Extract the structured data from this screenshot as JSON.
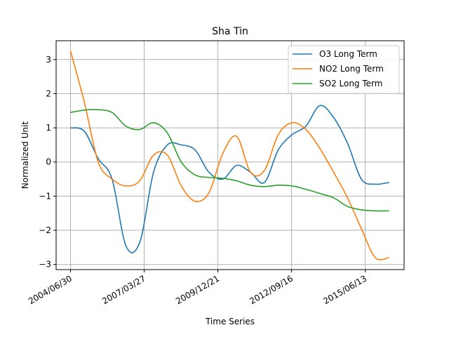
{
  "chart_data": {
    "type": "line",
    "title": "Sha Tin",
    "xlabel": "Time Series",
    "ylabel": "Normalized Unit",
    "xlim": [
      "2004/06/30",
      "2016/05/10"
    ],
    "ylim": [
      -3.15,
      3.55
    ],
    "grid": true,
    "legend_position": "top-right",
    "x_tick_labels": [
      "2004/06/30",
      "2007/03/27",
      "2009/12/21",
      "2012/09/16",
      "2015/06/13"
    ],
    "y_ticks": [
      -3,
      -2,
      -1,
      0,
      1,
      2,
      3
    ],
    "x": [
      "2004/06/30",
      "2005/01/04",
      "2005/07/11",
      "2006/01/15",
      "2006/07/22",
      "2007/01/26",
      "2007/08/01",
      "2008/02/05",
      "2008/08/11",
      "2009/02/15",
      "2009/08/22",
      "2010/02/26",
      "2010/09/02",
      "2011/03/09",
      "2011/09/13",
      "2012/03/19",
      "2012/09/23",
      "2013/03/30",
      "2013/10/04",
      "2014/04/10",
      "2014/10/15",
      "2015/04/21",
      "2015/10/26",
      "2016/05/01"
    ],
    "series": [
      {
        "name": "O3 Long Term",
        "color": "#1f77b4",
        "values": [
          1.0,
          0.9,
          0.1,
          -0.5,
          -2.45,
          -2.35,
          -0.3,
          0.5,
          0.5,
          0.35,
          -0.3,
          -0.5,
          -0.1,
          -0.3,
          -0.6,
          0.35,
          0.8,
          1.05,
          1.65,
          1.3,
          0.55,
          -0.5,
          -0.65,
          -0.6
        ]
      },
      {
        "name": "NO2 Long Term",
        "color": "#ff7f0e",
        "values": [
          3.25,
          1.75,
          0.0,
          -0.5,
          -0.7,
          -0.55,
          0.2,
          0.2,
          -0.7,
          -1.15,
          -0.9,
          0.25,
          0.75,
          -0.3,
          -0.25,
          0.8,
          1.15,
          0.95,
          0.4,
          -0.3,
          -1.05,
          -1.95,
          -2.8,
          -2.8
        ]
      },
      {
        "name": "SO2 Long Term",
        "color": "#2ca02c",
        "values": [
          1.45,
          1.52,
          1.53,
          1.45,
          1.05,
          0.95,
          1.15,
          0.85,
          0.0,
          -0.38,
          -0.45,
          -0.48,
          -0.55,
          -0.68,
          -0.72,
          -0.68,
          -0.7,
          -0.8,
          -0.92,
          -1.05,
          -1.3,
          -1.4,
          -1.43,
          -1.43
        ]
      }
    ]
  }
}
